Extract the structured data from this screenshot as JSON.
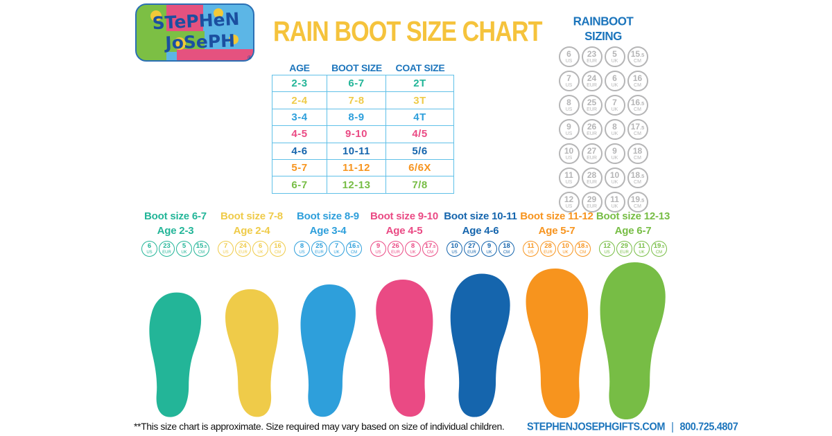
{
  "title": "RAIN BOOT SIZE CHART",
  "logo": {
    "line1": "STePHeN",
    "line2": "JoSePH",
    "registered": "®"
  },
  "colors": {
    "blue_text": "#1C75BC",
    "title_yellow": "#F5C33C",
    "table_border": "#5FC0E8",
    "gray_circle": "#B5B5B6",
    "palette": [
      "#23B598",
      "#EFCB49",
      "#2E9FDB",
      "#EA4A84",
      "#1565AD",
      "#F7941E",
      "#77BD45"
    ]
  },
  "size_table": {
    "headers": [
      "AGE",
      "BOOT SIZE",
      "COAT SIZE"
    ],
    "rows": [
      {
        "age": "2-3",
        "boot_size": "6-7",
        "coat_size": "2T"
      },
      {
        "age": "2-4",
        "boot_size": "7-8",
        "coat_size": "3T"
      },
      {
        "age": "3-4",
        "boot_size": "8-9",
        "coat_size": "4T"
      },
      {
        "age": "4-5",
        "boot_size": "9-10",
        "coat_size": "4/5"
      },
      {
        "age": "4-6",
        "boot_size": "10-11",
        "coat_size": "5/6"
      },
      {
        "age": "5-7",
        "boot_size": "11-12",
        "coat_size": "6/6X"
      },
      {
        "age": "6-7",
        "boot_size": "12-13",
        "coat_size": "7/8"
      }
    ]
  },
  "rainboot_sizing": {
    "title": "RAINBOOT SIZING",
    "units": [
      "US",
      "EUR",
      "UK",
      "CM"
    ],
    "rows": [
      [
        "6",
        "23",
        "5",
        "15.5"
      ],
      [
        "7",
        "24",
        "6",
        "16"
      ],
      [
        "8",
        "25",
        "7",
        "16.5"
      ],
      [
        "9",
        "26",
        "8",
        "17.5"
      ],
      [
        "10",
        "27",
        "9",
        "18"
      ],
      [
        "11",
        "28",
        "10",
        "18.5"
      ],
      [
        "12",
        "29",
        "11",
        "19.5"
      ]
    ]
  },
  "boot_columns": [
    {
      "boot_label": "Boot size 6-7",
      "age_label": "Age 2-3",
      "sizes": [
        "6",
        "23",
        "5",
        "15.5"
      ]
    },
    {
      "boot_label": "Boot size 7-8",
      "age_label": "Age 2-4",
      "sizes": [
        "7",
        "24",
        "6",
        "16"
      ]
    },
    {
      "boot_label": "Boot size 8-9",
      "age_label": "Age 3-4",
      "sizes": [
        "8",
        "25",
        "7",
        "16.5"
      ]
    },
    {
      "boot_label": "Boot size 9-10",
      "age_label": "Age 4-5",
      "sizes": [
        "9",
        "26",
        "8",
        "17.5"
      ]
    },
    {
      "boot_label": "Boot size 10-11",
      "age_label": "Age 4-6",
      "sizes": [
        "10",
        "27",
        "9",
        "18"
      ]
    },
    {
      "boot_label": "Boot size 11-12",
      "age_label": "Age 5-7",
      "sizes": [
        "11",
        "28",
        "10",
        "18.5"
      ]
    },
    {
      "boot_label": "Boot size 12-13",
      "age_label": "Age 6-7",
      "sizes": [
        "12",
        "29",
        "11",
        "19.5"
      ]
    }
  ],
  "footer": {
    "disclaimer": "**This size chart is approximate. Size required may vary based on size of individual children.",
    "website": "STEPHENJOSEPHGIFTS.COM",
    "separator": "|",
    "phone": "800.725.4807"
  }
}
